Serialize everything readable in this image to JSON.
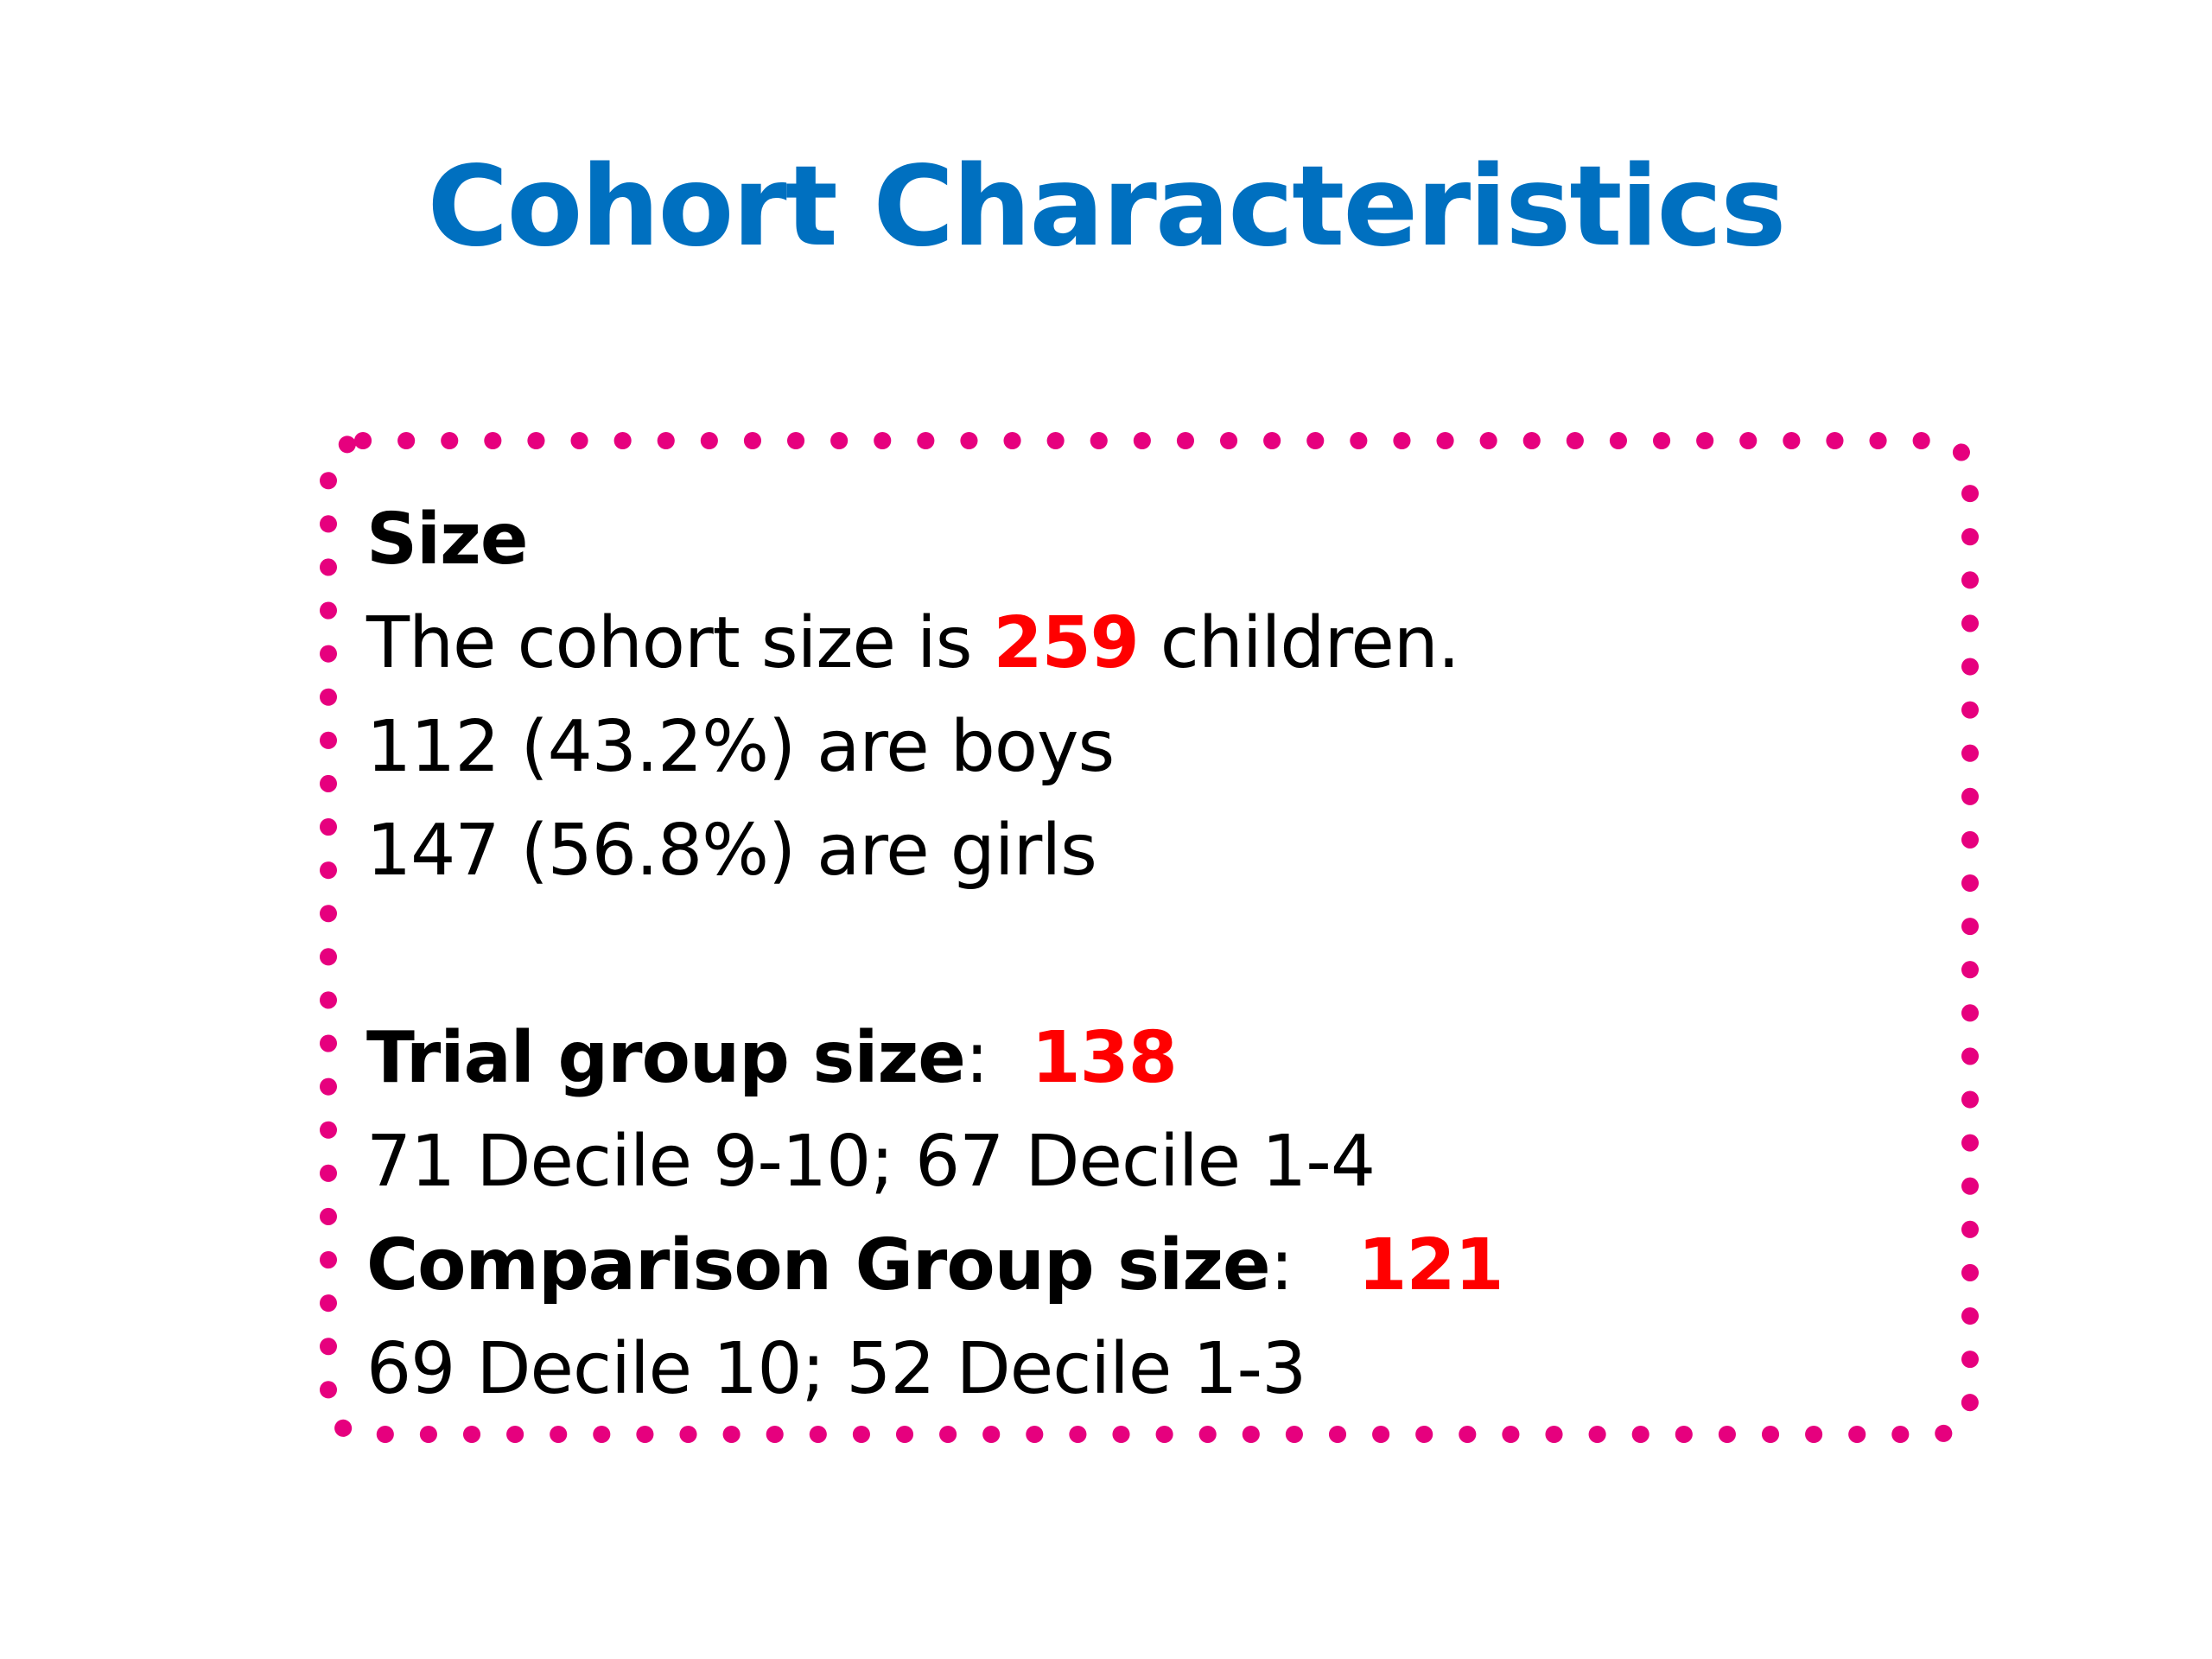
{
  "slide": {
    "title": "Cohort Characteristics",
    "border_color": "#e6007e",
    "title_color": "#0070c0",
    "highlight_color": "#ff0000"
  },
  "size_section": {
    "heading": "Size",
    "cohort_prefix": "The cohort size is ",
    "cohort_value": "259",
    "cohort_suffix": " children.",
    "boys_line": "112 (43.2%) are boys",
    "girls_line": "147 (56.8%) are girls"
  },
  "trial_section": {
    "label": "Trial group size",
    "separator": ":  ",
    "value": "138",
    "detail": "71 Decile 9-10; 67 Decile 1-4"
  },
  "comparison_section": {
    "label": "Comparison Group size",
    "separator": ":   ",
    "value": "121",
    "detail": "69 Decile 10; 52 Decile 1-3"
  }
}
